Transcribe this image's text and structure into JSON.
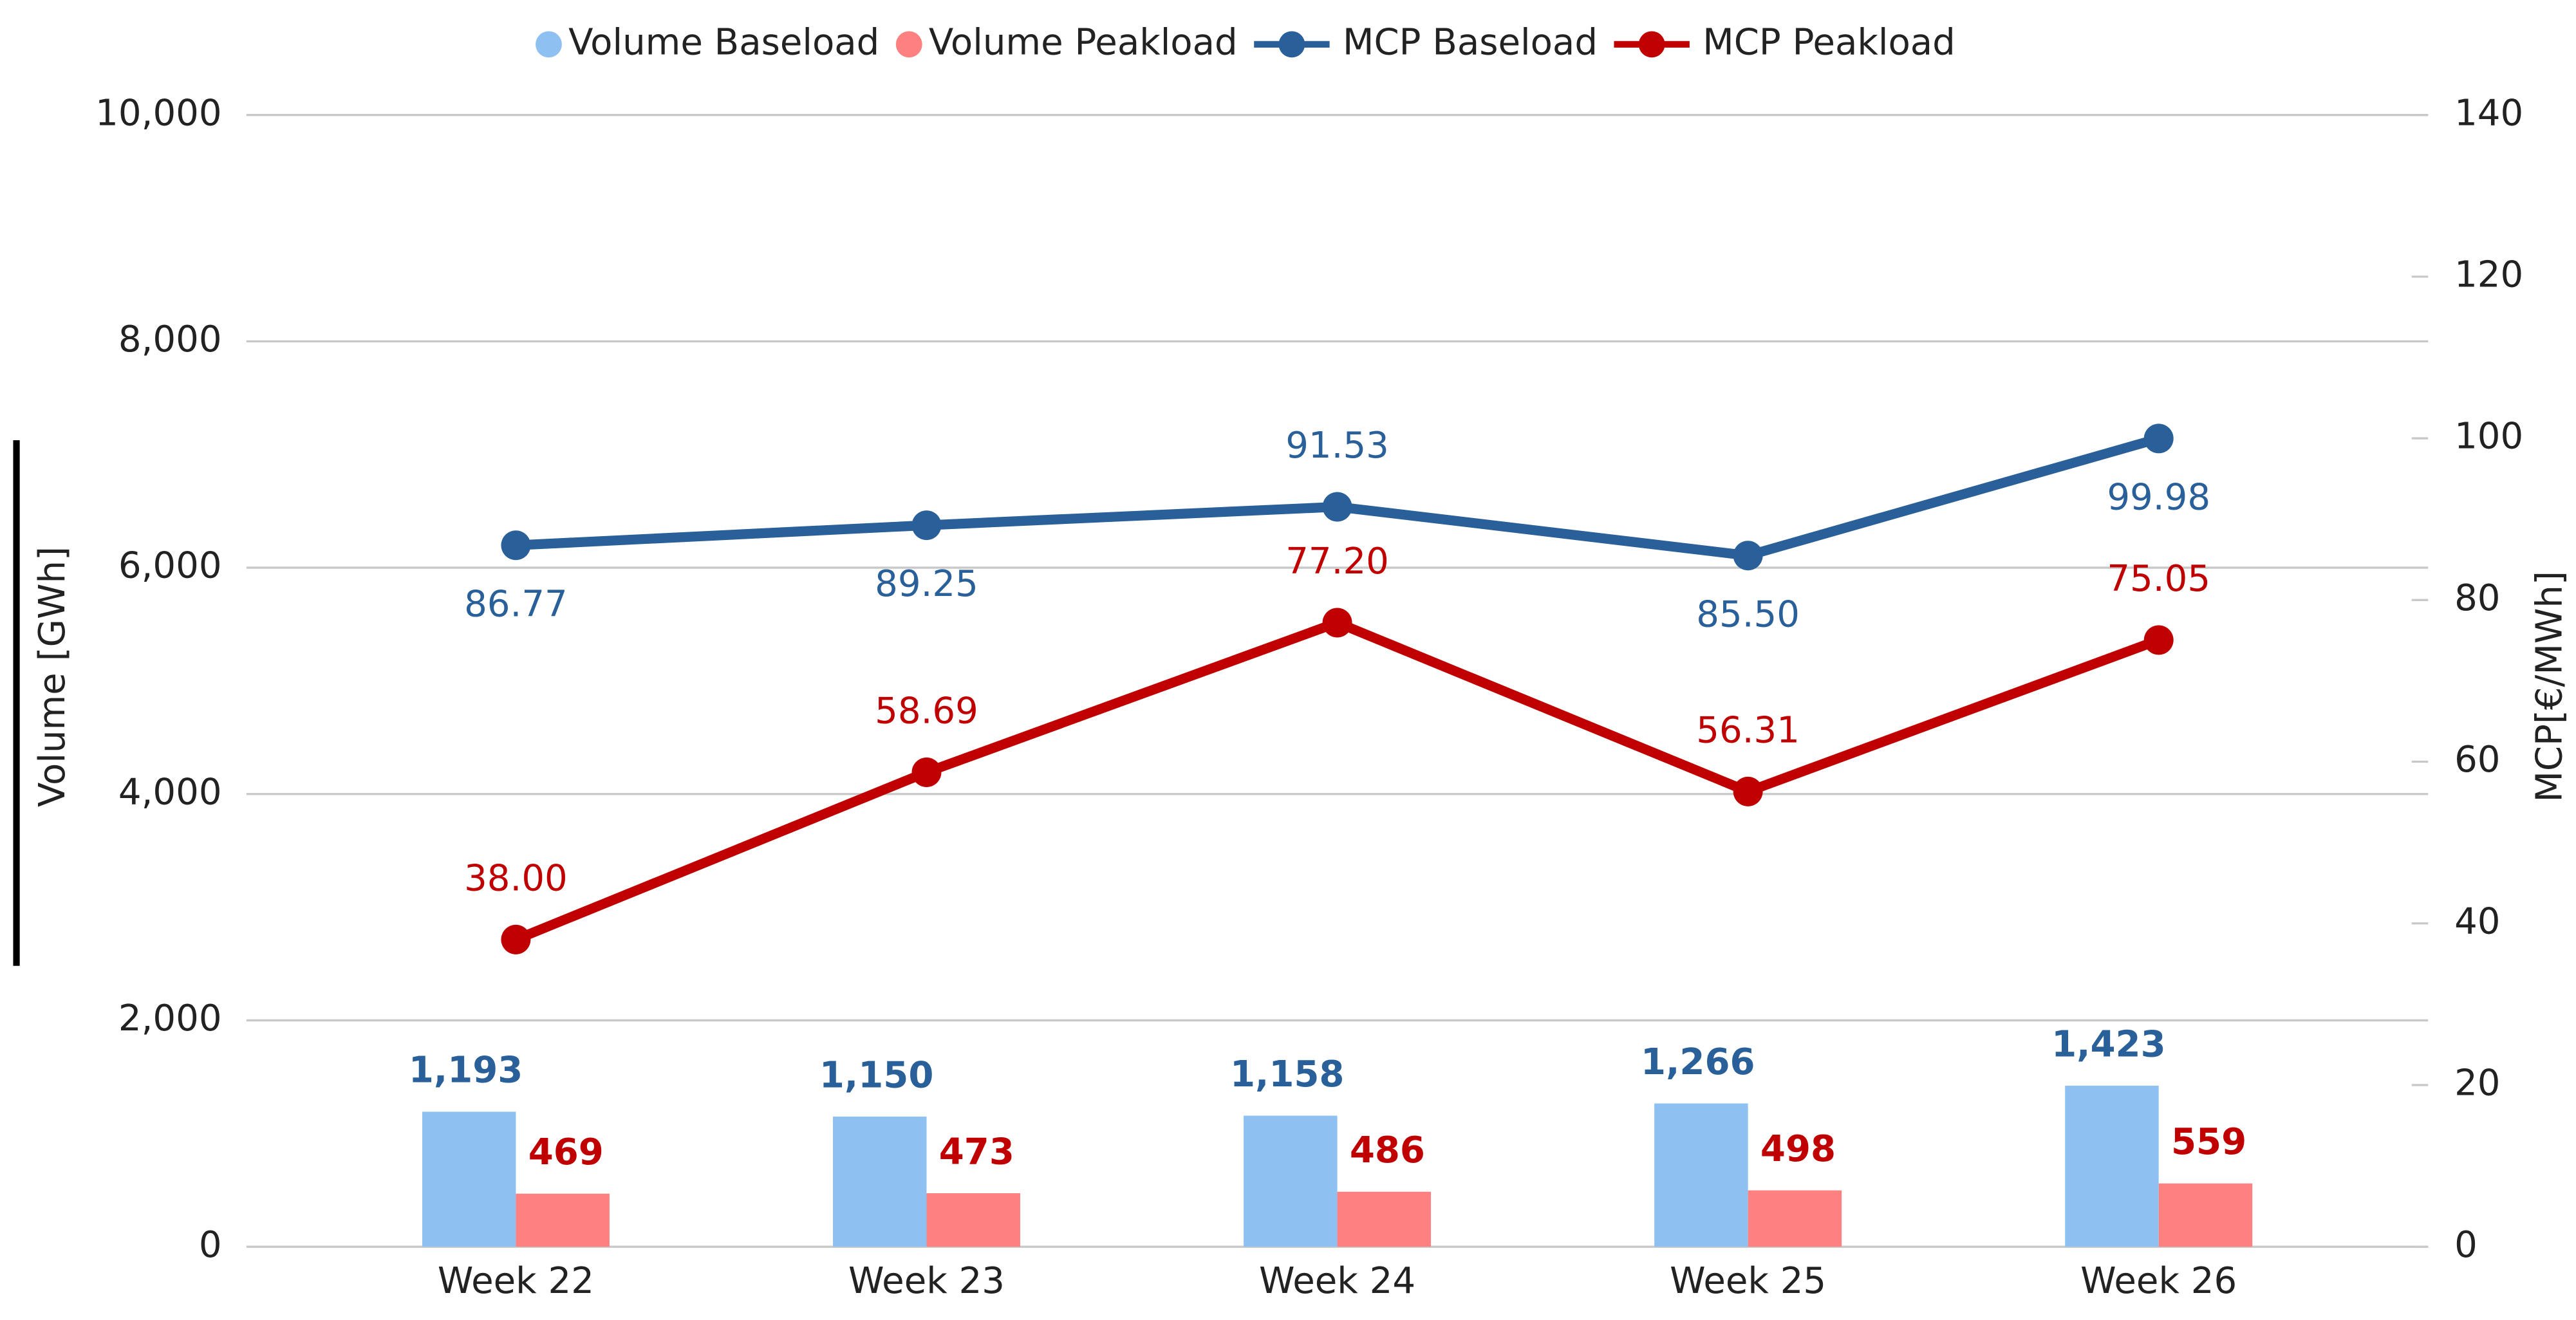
{
  "chart_data": {
    "type": "bar-line",
    "categories": [
      "Week 22",
      "Week 23",
      "Week 24",
      "Week 25",
      "Week 26"
    ],
    "series": [
      {
        "name": "Volume Baseload",
        "type": "bar",
        "color": "#8fc0f2",
        "values": [
          1193,
          1150,
          1158,
          1266,
          1423
        ],
        "value_labels": [
          "1,193",
          "1,150",
          "1,158",
          "1,266",
          "1,423"
        ],
        "label_color": "#2a6099"
      },
      {
        "name": "Volume Peakload",
        "type": "bar",
        "color": "#ff8080",
        "values": [
          469,
          473,
          486,
          498,
          559
        ],
        "label_color": "#c00000"
      },
      {
        "name": "MCP Baseload",
        "type": "line",
        "axis": "y2",
        "color": "#2a6099",
        "values": [
          86.77,
          89.25,
          91.53,
          85.5,
          99.98
        ],
        "value_labels": [
          "86.77",
          "89.25",
          "91.53",
          "85.50",
          "99.98"
        ]
      },
      {
        "name": "MCP Peakload",
        "type": "line",
        "axis": "y2",
        "color": "#c00000",
        "values": [
          38.0,
          58.69,
          77.2,
          56.31,
          75.05
        ],
        "value_labels": [
          "38.00",
          "58.69",
          "77.20",
          "56.31",
          "75.05"
        ]
      }
    ],
    "ylabel": "Volume [GWh]",
    "y2label": "MCP[€/MWh]",
    "ylim": [
      0,
      10000
    ],
    "yticks": [
      0,
      {
        "value": 2000,
        "label": "2,000"
      },
      {
        "value": 4000,
        "label": "4,000"
      },
      {
        "value": 6000,
        "label": "6,000"
      },
      {
        "value": 8000,
        "label": "8,000"
      },
      {
        "value": 10000,
        "label": "10,000"
      }
    ],
    "y2lim": [
      0,
      140
    ],
    "y2ticks": [
      0,
      20,
      40,
      60,
      80,
      100,
      120,
      140
    ],
    "grid": true,
    "legend": "top"
  }
}
